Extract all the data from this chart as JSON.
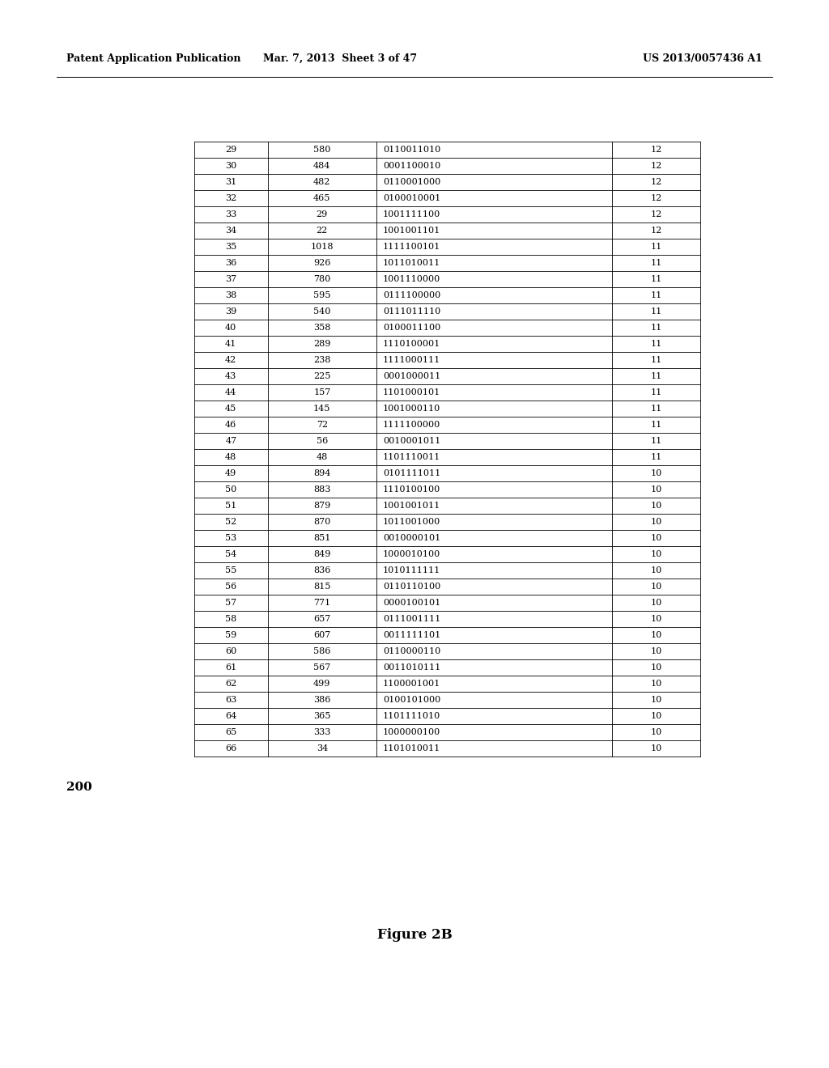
{
  "header_left": "Patent Application Publication",
  "header_center": "Mar. 7, 2013  Sheet 3 of 47",
  "header_right": "US 2013/0057436 A1",
  "label": "200",
  "figure_caption": "Figure 2B",
  "background_color": "#ffffff",
  "table_data": [
    [
      "29",
      "580",
      "0110011010",
      "12"
    ],
    [
      "30",
      "484",
      "0001100010",
      "12"
    ],
    [
      "31",
      "482",
      "0110001000",
      "12"
    ],
    [
      "32",
      "465",
      "0100010001",
      "12"
    ],
    [
      "33",
      "29",
      "1001111100",
      "12"
    ],
    [
      "34",
      "22",
      "1001001101",
      "12"
    ],
    [
      "35",
      "1018",
      "1111100101",
      "11"
    ],
    [
      "36",
      "926",
      "1011010011",
      "11"
    ],
    [
      "37",
      "780",
      "1001110000",
      "11"
    ],
    [
      "38",
      "595",
      "0111100000",
      "11"
    ],
    [
      "39",
      "540",
      "0111011110",
      "11"
    ],
    [
      "40",
      "358",
      "0100011100",
      "11"
    ],
    [
      "41",
      "289",
      "1110100001",
      "11"
    ],
    [
      "42",
      "238",
      "1111000111",
      "11"
    ],
    [
      "43",
      "225",
      "0001000011",
      "11"
    ],
    [
      "44",
      "157",
      "1101000101",
      "11"
    ],
    [
      "45",
      "145",
      "1001000110",
      "11"
    ],
    [
      "46",
      "72",
      "1111100000",
      "11"
    ],
    [
      "47",
      "56",
      "0010001011",
      "11"
    ],
    [
      "48",
      "48",
      "1101110011",
      "11"
    ],
    [
      "49",
      "894",
      "0101111011",
      "10"
    ],
    [
      "50",
      "883",
      "1110100100",
      "10"
    ],
    [
      "51",
      "879",
      "1001001011",
      "10"
    ],
    [
      "52",
      "870",
      "1011001000",
      "10"
    ],
    [
      "53",
      "851",
      "0010000101",
      "10"
    ],
    [
      "54",
      "849",
      "1000010100",
      "10"
    ],
    [
      "55",
      "836",
      "1010111111",
      "10"
    ],
    [
      "56",
      "815",
      "0110110100",
      "10"
    ],
    [
      "57",
      "771",
      "0000100101",
      "10"
    ],
    [
      "58",
      "657",
      "0111001111",
      "10"
    ],
    [
      "59",
      "607",
      "0011111101",
      "10"
    ],
    [
      "60",
      "586",
      "0110000110",
      "10"
    ],
    [
      "61",
      "567",
      "0011010111",
      "10"
    ],
    [
      "62",
      "499",
      "1100001001",
      "10"
    ],
    [
      "63",
      "386",
      "0100101000",
      "10"
    ],
    [
      "64",
      "365",
      "1101111010",
      "10"
    ],
    [
      "65",
      "333",
      "1000000100",
      "10"
    ],
    [
      "66",
      "34",
      "1101010011",
      "10"
    ]
  ],
  "font_size_header": 9.0,
  "font_size_table": 8.0,
  "font_size_label": 11,
  "font_size_caption": 12
}
